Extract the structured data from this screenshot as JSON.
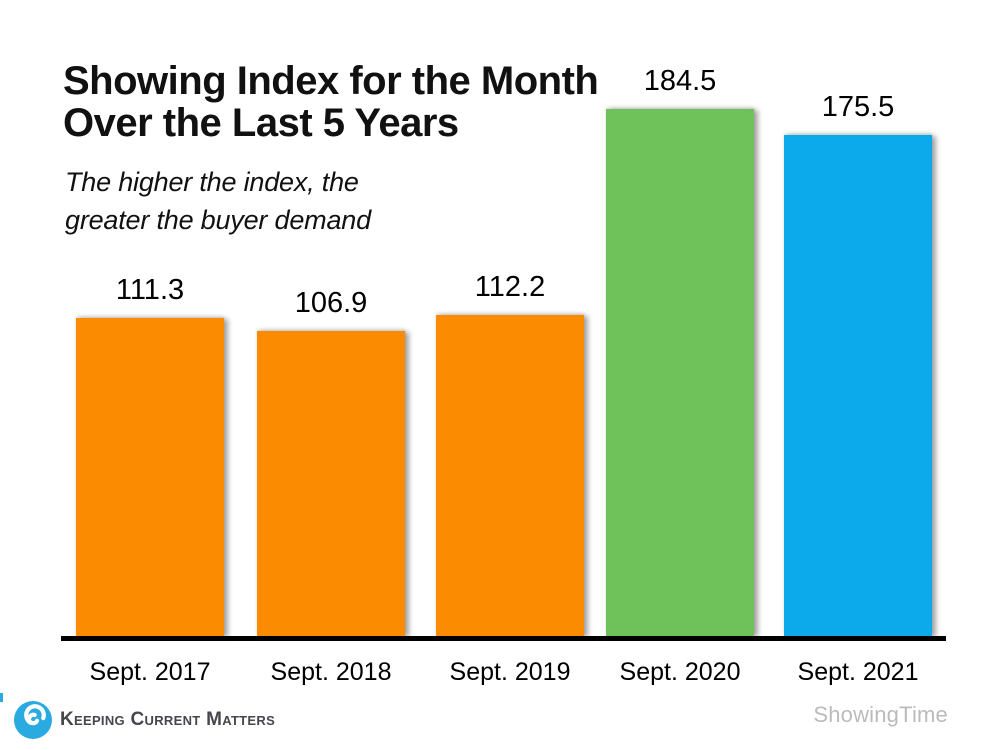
{
  "header": {
    "title_line1": "Showing Index for the Month",
    "title_line2": "Over the Last 5 Years",
    "subtitle_line1": "The higher the index, the",
    "subtitle_line2": "greater the buyer demand"
  },
  "chart_data": {
    "type": "bar",
    "title": "Showing Index for the Month Over the Last 5 Years",
    "subtitle": "The higher the index, the greater the buyer demand",
    "categories": [
      "Sept. 2017",
      "Sept. 2018",
      "Sept. 2019",
      "Sept. 2020",
      "Sept. 2021"
    ],
    "values": [
      111.3,
      106.9,
      112.2,
      184.5,
      175.5
    ],
    "value_labels": [
      "111.3",
      "106.9",
      "112.2",
      "184.5",
      "175.5"
    ],
    "bar_colors": [
      "#FB8B00",
      "#FB8B00",
      "#FB8B00",
      "#6FC25A",
      "#0DAAEB"
    ],
    "xlabel": "",
    "ylabel": "",
    "ylim": [
      0,
      200
    ],
    "grid": false,
    "legend_position": "none",
    "data_label_position": "above-bar",
    "axis_color": "#000000",
    "label_color": "#000000"
  },
  "footer": {
    "brand_name": "Keeping Current Matters",
    "brand_color": "#29ABE2",
    "attribution": "ShowingTime",
    "attribution_color": "#BBBBBB"
  }
}
